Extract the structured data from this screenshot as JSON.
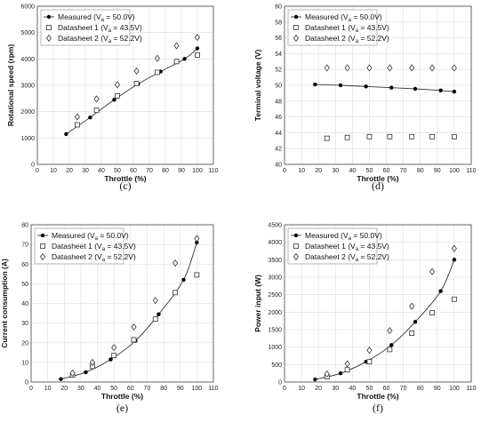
{
  "chart_data": [
    {
      "type": "line",
      "caption": "(c)",
      "xlabel": "Throttle (%)",
      "ylabel": "Rotational speed (rpm)",
      "xlim": [
        0,
        110
      ],
      "ylim": [
        0,
        6000
      ],
      "xticks": [
        0,
        10,
        20,
        30,
        40,
        50,
        60,
        70,
        80,
        90,
        100,
        110
      ],
      "yticks": [
        0,
        1000,
        2000,
        3000,
        4000,
        5000,
        6000
      ],
      "grid": true,
      "legend": "top-left",
      "series": [
        {
          "name": "Measured",
          "sub": "a",
          "voltage": "50.0V",
          "marker": "dot",
          "line": true,
          "x": [
            18,
            33,
            48,
            63,
            77,
            92,
            100
          ],
          "y": [
            1150,
            1780,
            2450,
            3050,
            3520,
            4000,
            4400
          ]
        },
        {
          "name": "Datasheet 1",
          "sub": "a",
          "voltage": "43.5V",
          "marker": "square",
          "line": false,
          "x": [
            25,
            37,
            50,
            62,
            75,
            87,
            100
          ],
          "y": [
            1500,
            2050,
            2600,
            3070,
            3490,
            3900,
            4150
          ]
        },
        {
          "name": "Datasheet 2",
          "sub": "a",
          "voltage": "52.2V",
          "marker": "diamond",
          "line": false,
          "x": [
            25,
            37,
            50,
            62,
            75,
            87,
            100
          ],
          "y": [
            1800,
            2480,
            3020,
            3540,
            4020,
            4500,
            4820
          ]
        }
      ]
    },
    {
      "type": "line",
      "caption": "(d)",
      "xlabel": "Throttle (%)",
      "ylabel": "Terminal voltage (V)",
      "xlim": [
        0,
        110
      ],
      "ylim": [
        40,
        60
      ],
      "xticks": [
        0,
        10,
        20,
        30,
        40,
        50,
        60,
        70,
        80,
        90,
        100,
        110
      ],
      "yticks": [
        40,
        42,
        44,
        46,
        48,
        50,
        52,
        54,
        56,
        58,
        60
      ],
      "grid": true,
      "legend": "top-left",
      "series": [
        {
          "name": "Measured",
          "sub": "a",
          "voltage": "50.0V",
          "marker": "dot",
          "line": true,
          "x": [
            18,
            33,
            48,
            63,
            77,
            92,
            100
          ],
          "y": [
            50.1,
            50.0,
            49.85,
            49.7,
            49.55,
            49.35,
            49.2
          ]
        },
        {
          "name": "Datasheet 1",
          "sub": "a",
          "voltage": "43.5V",
          "marker": "square",
          "line": false,
          "x": [
            25,
            37,
            50,
            62,
            75,
            87,
            100
          ],
          "y": [
            43.3,
            43.4,
            43.5,
            43.5,
            43.5,
            43.5,
            43.5
          ]
        },
        {
          "name": "Datasheet 2",
          "sub": "a",
          "voltage": "52.2V",
          "marker": "diamond",
          "line": false,
          "x": [
            25,
            37,
            50,
            62,
            75,
            87,
            100
          ],
          "y": [
            52.2,
            52.2,
            52.2,
            52.2,
            52.2,
            52.2,
            52.2
          ]
        }
      ]
    },
    {
      "type": "line",
      "caption": "(e)",
      "xlabel": "Throttle (%)",
      "ylabel": "Current consumption (A)",
      "xlim": [
        0,
        110
      ],
      "ylim": [
        0,
        80
      ],
      "xticks": [
        0,
        10,
        20,
        30,
        40,
        50,
        60,
        70,
        80,
        90,
        100,
        110
      ],
      "yticks": [
        0,
        10,
        20,
        30,
        40,
        50,
        60,
        70,
        80
      ],
      "grid": true,
      "legend": "top-left",
      "series": [
        {
          "name": "Measured",
          "sub": "a",
          "voltage": "50.0V",
          "marker": "dot",
          "line": true,
          "x": [
            18,
            33,
            48,
            63,
            77,
            92,
            100
          ],
          "y": [
            1.5,
            5,
            11.5,
            21,
            34.5,
            52,
            71
          ]
        },
        {
          "name": "Datasheet 1",
          "sub": "a",
          "voltage": "43.5V",
          "marker": "square",
          "line": false,
          "x": [
            25,
            37,
            50,
            62,
            75,
            87,
            100
          ],
          "y": [
            3.5,
            8,
            13.5,
            21.5,
            32,
            45.5,
            54.5
          ]
        },
        {
          "name": "Datasheet 2",
          "sub": "a",
          "voltage": "52.2V",
          "marker": "diamond",
          "line": false,
          "x": [
            25,
            37,
            50,
            62,
            75,
            87,
            100
          ],
          "y": [
            4.5,
            10,
            17.5,
            28,
            41.5,
            60.5,
            73
          ]
        }
      ]
    },
    {
      "type": "line",
      "caption": "(f)",
      "xlabel": "Throttle (%)",
      "ylabel": "Power input (W)",
      "xlim": [
        0,
        110
      ],
      "ylim": [
        0,
        4500
      ],
      "xticks": [
        0,
        10,
        20,
        30,
        40,
        50,
        60,
        70,
        80,
        90,
        100,
        110
      ],
      "yticks": [
        0,
        500,
        1000,
        1500,
        2000,
        2500,
        3000,
        3500,
        4000,
        4500
      ],
      "grid": true,
      "legend": "top-left",
      "series": [
        {
          "name": "Measured",
          "sub": "a",
          "voltage": "50.0V",
          "marker": "dot",
          "line": true,
          "x": [
            18,
            33,
            48,
            63,
            77,
            92,
            100
          ],
          "y": [
            75,
            250,
            580,
            1060,
            1720,
            2600,
            3500
          ]
        },
        {
          "name": "Datasheet 1",
          "sub": "a",
          "voltage": "43.5V",
          "marker": "square",
          "line": false,
          "x": [
            25,
            37,
            50,
            62,
            75,
            87,
            100
          ],
          "y": [
            150,
            350,
            580,
            930,
            1400,
            1980,
            2370
          ]
        },
        {
          "name": "Datasheet 2",
          "sub": "a",
          "voltage": "52.2V",
          "marker": "diamond",
          "line": false,
          "x": [
            25,
            37,
            50,
            62,
            75,
            87,
            100
          ],
          "y": [
            230,
            520,
            910,
            1470,
            2170,
            3160,
            3820
          ]
        }
      ]
    }
  ]
}
